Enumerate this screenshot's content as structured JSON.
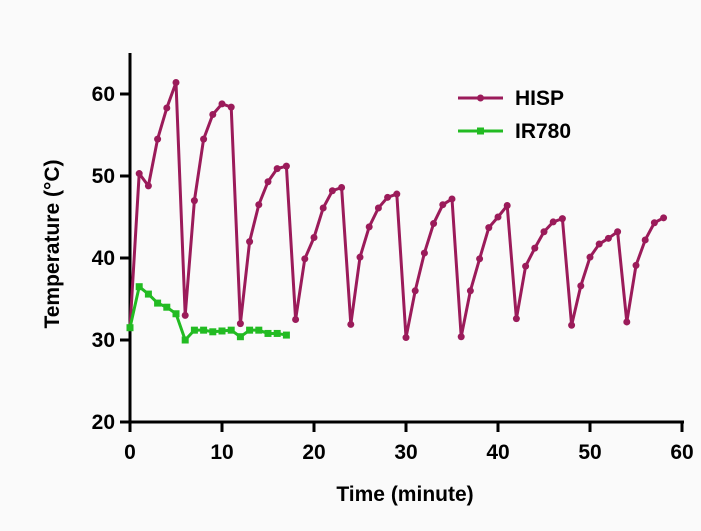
{
  "chart_data": {
    "type": "line",
    "xlabel": "Time  (minute)",
    "ylabel": "Temperature (°C)",
    "xlim": [
      0,
      60
    ],
    "ylim": [
      20,
      65
    ],
    "xticks": [
      0,
      10,
      20,
      30,
      40,
      50,
      60
    ],
    "yticks": [
      20,
      30,
      40,
      50,
      60
    ],
    "grid": false,
    "legend_position": "top-right",
    "series": [
      {
        "name": "HISP",
        "color": "#9b1b5a",
        "marker": "circle",
        "x": [
          0,
          1,
          2,
          3,
          4,
          5,
          6,
          7,
          8,
          9,
          10,
          11,
          12,
          13,
          14,
          15,
          16,
          17,
          18,
          19,
          20,
          21,
          22,
          23,
          24,
          25,
          26,
          27,
          28,
          29,
          30,
          31,
          32,
          33,
          34,
          35,
          36,
          37,
          38,
          39,
          40,
          41,
          42,
          43,
          44,
          45,
          46,
          47,
          48,
          49,
          50,
          51,
          52,
          53,
          54,
          55,
          56,
          57,
          58
        ],
        "y": [
          31.5,
          50.3,
          48.8,
          54.5,
          58.3,
          61.4,
          33.0,
          47.0,
          54.5,
          57.5,
          58.8,
          58.4,
          32.0,
          42.0,
          46.5,
          49.3,
          50.9,
          51.2,
          32.5,
          39.9,
          42.5,
          46.1,
          48.2,
          48.6,
          31.9,
          40.1,
          43.8,
          46.1,
          47.4,
          47.8,
          30.3,
          36.0,
          40.6,
          44.2,
          46.5,
          47.2,
          30.4,
          36.0,
          39.9,
          43.7,
          45.0,
          46.4,
          32.6,
          39.0,
          41.2,
          43.2,
          44.4,
          44.8,
          31.8,
          36.6,
          40.1,
          41.7,
          42.4,
          43.2,
          32.2,
          39.1,
          42.2,
          44.3,
          44.9
        ]
      },
      {
        "name": "IR780",
        "color": "#22bb22",
        "marker": "square",
        "x": [
          0,
          1,
          2,
          3,
          4,
          5,
          6,
          7,
          8,
          9,
          10,
          11,
          12,
          13,
          14,
          15,
          16,
          17
        ],
        "y": [
          31.5,
          36.5,
          35.6,
          34.5,
          34.0,
          33.2,
          30.0,
          31.2,
          31.2,
          31.0,
          31.1,
          31.2,
          30.4,
          31.2,
          31.2,
          30.8,
          30.8,
          30.6
        ]
      }
    ]
  }
}
